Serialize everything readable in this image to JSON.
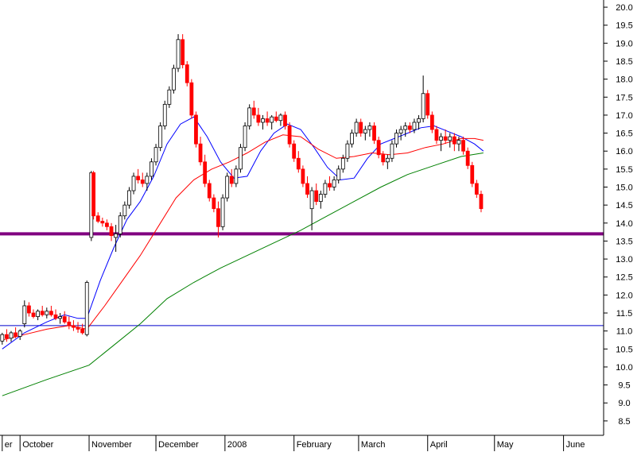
{
  "chart_data": {
    "type": "candlestick",
    "y_ticks": [
      "8.5",
      "9.0",
      "9.5",
      "10.0",
      "10.5",
      "11.0",
      "11.5",
      "12.0",
      "12.5",
      "13.0",
      "13.5",
      "14.0",
      "14.5",
      "15.0",
      "15.5",
      "16.0",
      "16.5",
      "17.0",
      "17.5",
      "18.0",
      "18.5",
      "19.0",
      "19.5",
      "20.0"
    ],
    "ylim": [
      8.1,
      20.2
    ],
    "x_labels": [
      {
        "label": "er",
        "day": 0
      },
      {
        "label": "October",
        "day": 8
      },
      {
        "label": "November",
        "day": 39
      },
      {
        "label": "December",
        "day": 69
      },
      {
        "label": "2008",
        "day": 100
      },
      {
        "label": "February",
        "day": 131
      },
      {
        "label": "March",
        "day": 160
      },
      {
        "label": "April",
        "day": 191
      },
      {
        "label": "May",
        "day": 221
      },
      {
        "label": "June",
        "day": 252
      }
    ],
    "day_range": [
      -1,
      270
    ],
    "horizontal_lines": [
      {
        "value": 13.7,
        "color": "#800080"
      },
      {
        "value": 11.15,
        "color": "#0000cc"
      }
    ],
    "candle_colors": {
      "up": "#ffffff",
      "down": "#ff0000",
      "outline": "#000000"
    },
    "candles": [
      [
        0,
        10.72,
        10.95,
        10.62,
        10.9
      ],
      [
        2,
        10.9,
        11.05,
        10.7,
        10.8
      ],
      [
        4,
        10.8,
        11.0,
        10.7,
        10.95
      ],
      [
        6,
        10.95,
        11.1,
        10.8,
        10.85
      ],
      [
        8,
        10.85,
        11.05,
        10.75,
        11.0
      ],
      [
        10,
        11.2,
        11.85,
        11.1,
        11.7
      ],
      [
        12,
        11.7,
        11.8,
        11.4,
        11.5
      ],
      [
        14,
        11.5,
        11.6,
        11.35,
        11.4
      ],
      [
        16,
        11.4,
        11.6,
        11.3,
        11.55
      ],
      [
        18,
        11.55,
        11.7,
        11.4,
        11.45
      ],
      [
        20,
        11.45,
        11.65,
        11.35,
        11.55
      ],
      [
        22,
        11.55,
        11.7,
        11.4,
        11.45
      ],
      [
        24,
        11.45,
        11.6,
        11.3,
        11.35
      ],
      [
        26,
        11.35,
        11.5,
        11.2,
        11.4
      ],
      [
        28,
        11.4,
        11.55,
        11.2,
        11.25
      ],
      [
        30,
        11.25,
        11.4,
        11.05,
        11.15
      ],
      [
        32,
        11.15,
        11.3,
        11.0,
        11.1
      ],
      [
        34,
        11.1,
        11.25,
        10.95,
        11.05
      ],
      [
        36,
        11.05,
        11.2,
        10.9,
        10.95
      ],
      [
        38,
        10.9,
        12.4,
        10.85,
        12.35
      ],
      [
        40,
        13.6,
        15.45,
        13.5,
        15.4
      ],
      [
        41,
        15.4,
        15.45,
        14.1,
        14.2
      ],
      [
        43,
        14.2,
        14.3,
        14.0,
        14.05
      ],
      [
        45,
        14.05,
        14.15,
        13.9,
        14.0
      ],
      [
        47,
        14.0,
        14.1,
        13.8,
        13.9
      ],
      [
        49,
        13.9,
        14.0,
        13.5,
        13.65
      ],
      [
        51,
        13.6,
        13.95,
        13.2,
        13.7
      ],
      [
        53,
        13.7,
        14.3,
        13.6,
        14.2
      ],
      [
        55,
        14.2,
        14.6,
        14.1,
        14.5
      ],
      [
        57,
        14.5,
        15.0,
        14.4,
        14.9
      ],
      [
        59,
        14.9,
        15.4,
        14.8,
        15.3
      ],
      [
        61,
        15.3,
        15.5,
        15.1,
        15.2
      ],
      [
        63,
        15.2,
        15.4,
        15.0,
        15.1
      ],
      [
        65,
        15.1,
        15.4,
        14.9,
        15.3
      ],
      [
        67,
        15.3,
        15.8,
        15.2,
        15.7
      ],
      [
        69,
        15.7,
        16.2,
        15.6,
        16.1
      ],
      [
        71,
        16.1,
        16.8,
        16.0,
        16.7
      ],
      [
        73,
        16.7,
        17.4,
        16.6,
        17.3
      ],
      [
        75,
        17.3,
        17.8,
        17.2,
        17.7
      ],
      [
        77,
        17.7,
        18.4,
        17.6,
        18.3
      ],
      [
        79,
        18.3,
        19.25,
        18.2,
        19.1
      ],
      [
        81,
        19.1,
        19.25,
        18.3,
        18.4
      ],
      [
        83,
        18.4,
        18.5,
        17.8,
        17.9
      ],
      [
        85,
        17.9,
        18.0,
        16.9,
        17.0
      ],
      [
        87,
        17.0,
        17.1,
        16.1,
        16.2
      ],
      [
        89,
        16.2,
        16.4,
        15.6,
        15.7
      ],
      [
        91,
        15.7,
        15.9,
        15.0,
        15.1
      ],
      [
        93,
        15.1,
        15.2,
        14.6,
        14.7
      ],
      [
        95,
        14.7,
        14.8,
        14.3,
        14.4
      ],
      [
        97,
        14.4,
        14.6,
        13.6,
        13.9
      ],
      [
        99,
        13.9,
        14.8,
        13.8,
        14.7
      ],
      [
        101,
        14.7,
        15.4,
        14.6,
        15.3
      ],
      [
        103,
        15.3,
        15.5,
        15.0,
        15.1
      ],
      [
        105,
        15.1,
        15.6,
        15.0,
        15.5
      ],
      [
        107,
        15.5,
        16.2,
        15.4,
        16.1
      ],
      [
        109,
        16.1,
        16.8,
        16.0,
        16.7
      ],
      [
        111,
        16.7,
        17.3,
        16.6,
        17.2
      ],
      [
        113,
        17.2,
        17.4,
        16.9,
        17.0
      ],
      [
        115,
        17.0,
        17.2,
        16.7,
        16.8
      ],
      [
        117,
        16.8,
        17.0,
        16.6,
        16.9
      ],
      [
        119,
        16.9,
        17.1,
        16.7,
        16.8
      ],
      [
        121,
        16.8,
        17.0,
        16.6,
        16.95
      ],
      [
        123,
        16.95,
        17.1,
        16.8,
        16.85
      ],
      [
        125,
        16.85,
        17.05,
        16.7,
        17.0
      ],
      [
        127,
        17.0,
        17.1,
        16.6,
        16.7
      ],
      [
        129,
        16.7,
        16.8,
        16.1,
        16.2
      ],
      [
        131,
        16.2,
        16.3,
        15.7,
        15.8
      ],
      [
        133,
        15.8,
        16.0,
        15.4,
        15.5
      ],
      [
        135,
        15.5,
        15.6,
        15.0,
        15.1
      ],
      [
        137,
        15.1,
        15.3,
        14.7,
        14.8
      ],
      [
        139,
        14.4,
        15.0,
        13.8,
        14.9
      ],
      [
        141,
        14.9,
        15.1,
        14.5,
        14.6
      ],
      [
        143,
        14.6,
        14.9,
        14.4,
        14.8
      ],
      [
        145,
        14.8,
        15.2,
        14.7,
        15.1
      ],
      [
        147,
        15.1,
        15.3,
        14.9,
        15.0
      ],
      [
        149,
        15.0,
        15.3,
        14.9,
        15.2
      ],
      [
        151,
        15.2,
        15.6,
        15.1,
        15.5
      ],
      [
        153,
        15.5,
        15.9,
        15.4,
        15.8
      ],
      [
        155,
        15.8,
        16.3,
        15.7,
        16.2
      ],
      [
        157,
        16.2,
        16.6,
        16.1,
        16.5
      ],
      [
        159,
        16.5,
        16.9,
        16.4,
        16.8
      ],
      [
        161,
        16.8,
        16.9,
        16.4,
        16.5
      ],
      [
        163,
        16.5,
        16.7,
        16.3,
        16.6
      ],
      [
        165,
        16.6,
        16.8,
        16.4,
        16.7
      ],
      [
        167,
        16.7,
        16.8,
        16.2,
        16.3
      ],
      [
        169,
        16.3,
        16.4,
        15.8,
        15.9
      ],
      [
        171,
        15.9,
        16.0,
        15.6,
        15.7
      ],
      [
        173,
        15.7,
        15.9,
        15.5,
        15.8
      ],
      [
        175,
        15.8,
        16.3,
        15.7,
        16.2
      ],
      [
        177,
        16.2,
        16.6,
        16.1,
        16.5
      ],
      [
        179,
        16.5,
        16.7,
        16.3,
        16.6
      ],
      [
        181,
        16.6,
        16.8,
        16.4,
        16.7
      ],
      [
        183,
        16.7,
        16.8,
        16.5,
        16.6
      ],
      [
        185,
        16.6,
        16.9,
        16.5,
        16.8
      ],
      [
        187,
        16.8,
        17.0,
        16.6,
        16.9
      ],
      [
        189,
        16.9,
        18.1,
        16.8,
        17.6
      ],
      [
        191,
        17.6,
        17.7,
        16.9,
        17.0
      ],
      [
        193,
        17.0,
        17.1,
        16.5,
        16.6
      ],
      [
        195,
        16.6,
        16.7,
        16.2,
        16.3
      ],
      [
        197,
        16.3,
        16.5,
        16.0,
        16.4
      ],
      [
        199,
        16.4,
        16.6,
        16.2,
        16.3
      ],
      [
        201,
        16.3,
        16.5,
        16.1,
        16.4
      ],
      [
        203,
        16.4,
        16.5,
        16.0,
        16.2
      ],
      [
        205,
        16.2,
        16.4,
        16.0,
        16.3
      ],
      [
        207,
        16.3,
        16.4,
        15.9,
        16.0
      ],
      [
        209,
        16.0,
        16.1,
        15.5,
        15.6
      ],
      [
        211,
        15.6,
        15.7,
        15.0,
        15.1
      ],
      [
        213,
        15.1,
        15.2,
        14.7,
        14.8
      ],
      [
        215,
        14.8,
        14.9,
        14.3,
        14.4
      ]
    ],
    "moving_averages": [
      {
        "color": "#0000ff",
        "points": [
          [
            0,
            10.5
          ],
          [
            10,
            10.95
          ],
          [
            20,
            11.25
          ],
          [
            28,
            11.45
          ],
          [
            34,
            11.35
          ],
          [
            38,
            11.35
          ],
          [
            44,
            12.4
          ],
          [
            50,
            13.3
          ],
          [
            56,
            14.1
          ],
          [
            62,
            14.6
          ],
          [
            68,
            15.3
          ],
          [
            74,
            16.2
          ],
          [
            80,
            16.75
          ],
          [
            86,
            16.95
          ],
          [
            92,
            16.4
          ],
          [
            98,
            15.7
          ],
          [
            104,
            15.25
          ],
          [
            110,
            15.3
          ],
          [
            116,
            16.0
          ],
          [
            122,
            16.5
          ],
          [
            128,
            16.75
          ],
          [
            134,
            16.6
          ],
          [
            140,
            16.1
          ],
          [
            146,
            15.55
          ],
          [
            152,
            15.2
          ],
          [
            158,
            15.25
          ],
          [
            164,
            15.8
          ],
          [
            170,
            16.2
          ],
          [
            176,
            16.35
          ],
          [
            182,
            16.5
          ],
          [
            188,
            16.65
          ],
          [
            194,
            16.7
          ],
          [
            200,
            16.55
          ],
          [
            206,
            16.4
          ],
          [
            212,
            16.2
          ],
          [
            216,
            16.0
          ]
        ]
      },
      {
        "color": "#ff0000",
        "points": [
          [
            0,
            10.75
          ],
          [
            10,
            10.9
          ],
          [
            20,
            11.05
          ],
          [
            30,
            11.15
          ],
          [
            38,
            11.05
          ],
          [
            46,
            11.7
          ],
          [
            54,
            12.4
          ],
          [
            62,
            13.1
          ],
          [
            70,
            13.9
          ],
          [
            78,
            14.7
          ],
          [
            86,
            15.2
          ],
          [
            94,
            15.5
          ],
          [
            102,
            15.7
          ],
          [
            110,
            15.95
          ],
          [
            118,
            16.25
          ],
          [
            126,
            16.45
          ],
          [
            134,
            16.4
          ],
          [
            142,
            16.05
          ],
          [
            150,
            15.8
          ],
          [
            158,
            15.85
          ],
          [
            166,
            15.95
          ],
          [
            174,
            15.9
          ],
          [
            182,
            15.95
          ],
          [
            190,
            16.1
          ],
          [
            198,
            16.2
          ],
          [
            206,
            16.35
          ],
          [
            212,
            16.35
          ],
          [
            216,
            16.3
          ]
        ]
      },
      {
        "color": "#008000",
        "points": [
          [
            0,
            9.2
          ],
          [
            20,
            9.65
          ],
          [
            39,
            10.05
          ],
          [
            50,
            10.6
          ],
          [
            62,
            11.2
          ],
          [
            74,
            11.9
          ],
          [
            86,
            12.35
          ],
          [
            98,
            12.75
          ],
          [
            110,
            13.1
          ],
          [
            122,
            13.45
          ],
          [
            134,
            13.8
          ],
          [
            146,
            14.2
          ],
          [
            158,
            14.6
          ],
          [
            170,
            15.0
          ],
          [
            182,
            15.35
          ],
          [
            194,
            15.6
          ],
          [
            206,
            15.85
          ],
          [
            216,
            15.95
          ]
        ]
      }
    ]
  }
}
